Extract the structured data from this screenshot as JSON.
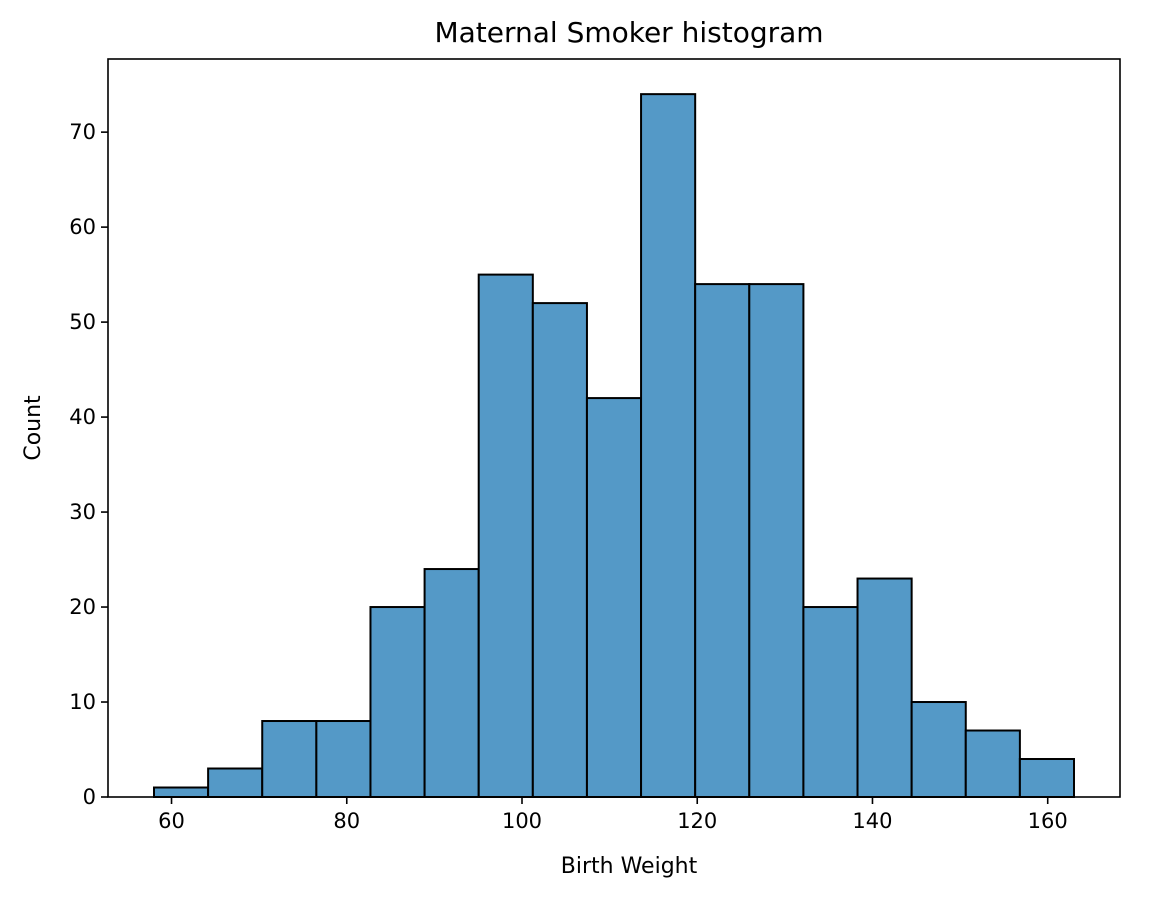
{
  "chart_data": {
    "type": "bar",
    "title": "Maternal Smoker histogram",
    "xlabel": "Birth Weight",
    "ylabel": "Count",
    "bin_edges": [
      58.0,
      64.1765,
      70.3529,
      76.5294,
      82.7059,
      88.8824,
      95.0588,
      101.2353,
      107.4118,
      113.5882,
      119.7647,
      125.9412,
      132.1176,
      138.2941,
      144.4706,
      150.6471,
      156.8235,
      163.0
    ],
    "counts": [
      1,
      3,
      8,
      8,
      20,
      24,
      55,
      52,
      42,
      74,
      54,
      54,
      20,
      23,
      10,
      7,
      4
    ],
    "xlim": [
      52.75,
      168.25
    ],
    "ylim": [
      0,
      77.7
    ],
    "xticks": [
      60,
      80,
      100,
      120,
      140,
      160
    ],
    "yticks": [
      0,
      10,
      20,
      30,
      40,
      50,
      60,
      70
    ],
    "grid": false,
    "colors": {
      "bar_fill": "#5499c7",
      "bar_edge": "#000000",
      "axes": "#000000"
    }
  }
}
